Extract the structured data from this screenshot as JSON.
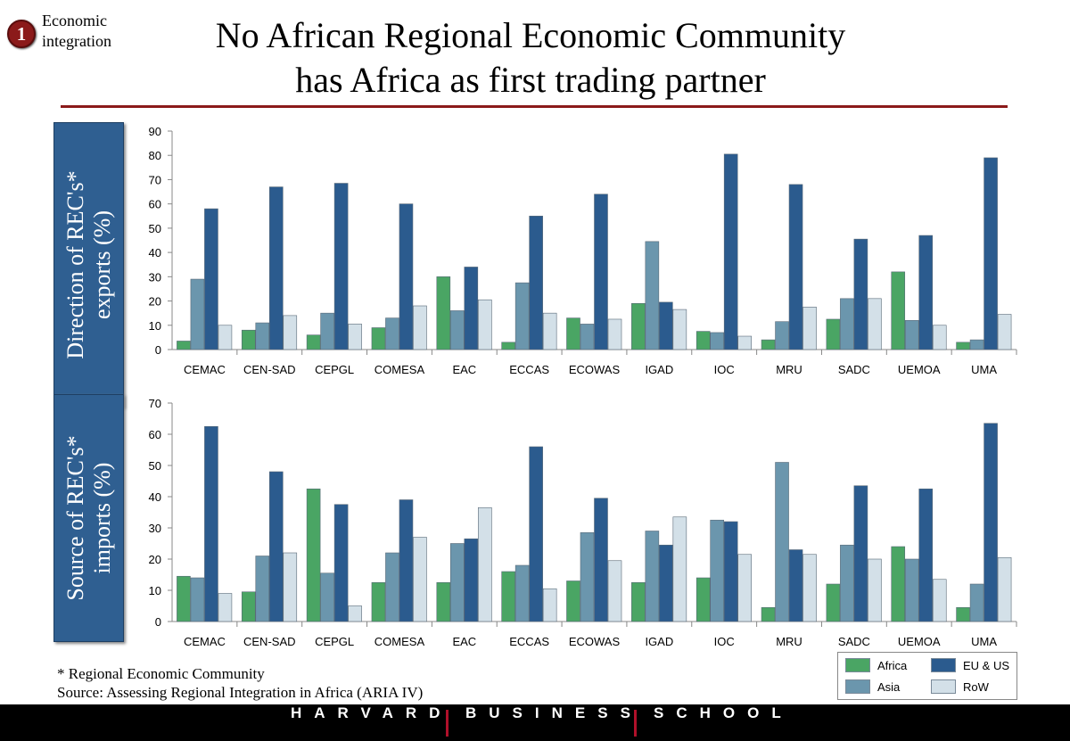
{
  "header": {
    "badge": "1",
    "tag_line1": "Economic",
    "tag_line2": "integration",
    "title_line1": "No African Regional Economic Community",
    "title_line2": "has Africa as first trading partner"
  },
  "panels": {
    "exports_label_line1": "Direction of REC's*",
    "exports_label_line2": "exports (%)",
    "imports_label_line1": "Source of REC's*",
    "imports_label_line2": "imports (%)"
  },
  "colors": {
    "Africa": "#4aa564",
    "Asia": "#6b96ad",
    "EU & US": "#2b5b8e",
    "RoW": "#d3e0e8",
    "accent": "#8b1a1a"
  },
  "chart_data": [
    {
      "type": "bar",
      "categories": [
        "CEMAC",
        "CEN-SAD",
        "CEPGL",
        "COMESA",
        "EAC",
        "ECCAS",
        "ECOWAS",
        "IGAD",
        "IOC",
        "MRU",
        "SADC",
        "UEMOA",
        "UMA"
      ],
      "series": [
        {
          "name": "Africa",
          "values": [
            3.5,
            8,
            6,
            9,
            30,
            3,
            13,
            19,
            7.5,
            4,
            12.5,
            32,
            3
          ]
        },
        {
          "name": "Asia",
          "values": [
            29,
            11,
            15,
            13,
            16,
            27.5,
            10.5,
            44.5,
            7,
            11.5,
            21,
            12,
            4
          ]
        },
        {
          "name": "EU & US",
          "values": [
            58,
            67,
            68.5,
            60,
            34,
            55,
            64,
            19.5,
            80.5,
            68,
            45.5,
            47,
            79
          ]
        },
        {
          "name": "RoW",
          "values": [
            10,
            14,
            10.5,
            18,
            20.5,
            15,
            12.5,
            16.5,
            5.5,
            17.5,
            21,
            10,
            14.5
          ]
        }
      ],
      "ylim": [
        0,
        90
      ],
      "yticks": [
        0,
        10,
        20,
        30,
        40,
        50,
        60,
        70,
        80,
        90
      ],
      "grid": false
    },
    {
      "type": "bar",
      "categories": [
        "CEMAC",
        "CEN-SAD",
        "CEPGL",
        "COMESA",
        "EAC",
        "ECCAS",
        "ECOWAS",
        "IGAD",
        "IOC",
        "MRU",
        "SADC",
        "UEMOA",
        "UMA"
      ],
      "series": [
        {
          "name": "Africa",
          "values": [
            14.5,
            9.5,
            42.5,
            12.5,
            12.5,
            16,
            13,
            12.5,
            14,
            4.5,
            12,
            24,
            4.5
          ]
        },
        {
          "name": "Asia",
          "values": [
            14,
            21,
            15.5,
            22,
            25,
            18,
            28.5,
            29,
            32.5,
            51,
            24.5,
            20,
            12
          ]
        },
        {
          "name": "EU & US",
          "values": [
            62.5,
            48,
            37.5,
            39,
            26.5,
            56,
            39.5,
            24.5,
            32,
            23,
            43.5,
            42.5,
            63.5
          ]
        },
        {
          "name": "RoW",
          "values": [
            9,
            22,
            5,
            27,
            36.5,
            10.5,
            19.5,
            33.5,
            21.5,
            21.5,
            20,
            13.5,
            20.5
          ]
        }
      ],
      "ylim": [
        0,
        70
      ],
      "yticks": [
        0,
        10,
        20,
        30,
        40,
        50,
        60,
        70
      ],
      "grid": false
    }
  ],
  "legend": {
    "placement": "bottom-right",
    "items": [
      "Africa",
      "EU & US",
      "Asia",
      "RoW"
    ]
  },
  "footnote": {
    "line1": "* Regional Economic Community",
    "line2": "Source: Assessing Regional Integration in Africa (ARIA IV)"
  },
  "footer": {
    "word1": "HARVARD",
    "word2": "BUSINESS",
    "word3": "SCHOOL"
  }
}
